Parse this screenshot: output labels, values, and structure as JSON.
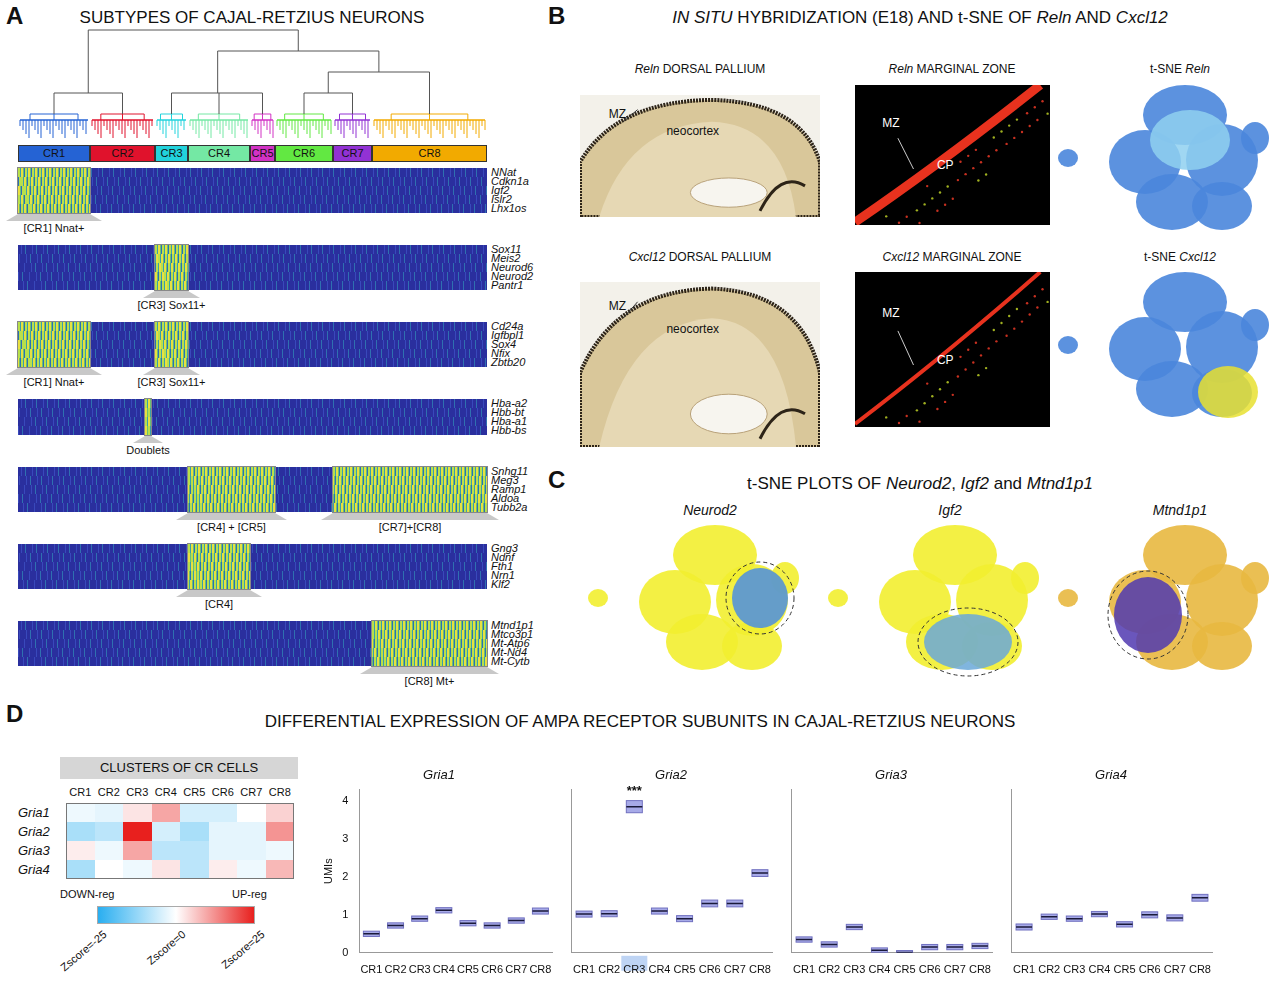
{
  "chart_data": [
    {
      "type": "point",
      "title": "Gria1",
      "y_label": "UMIs",
      "categories": [
        "CR1",
        "CR2",
        "CR3",
        "CR4",
        "CR5",
        "CR6",
        "CR7",
        "CR8"
      ],
      "values": [
        0.5,
        0.72,
        0.9,
        1.12,
        0.78,
        0.72,
        0.85,
        1.1
      ],
      "errors": [
        0.03,
        0.03,
        0.03,
        0.03,
        0.03,
        0.03,
        0.03,
        0.04
      ],
      "color": "#8a8ee0",
      "marker": "line",
      "ylim": [
        0,
        4.3
      ],
      "yticks": [
        0,
        1,
        2,
        3,
        4
      ]
    },
    {
      "type": "point",
      "title": "Gria2",
      "categories": [
        "CR1",
        "CR2",
        "CR3",
        "CR4",
        "CR5",
        "CR6",
        "CR7",
        "CR8"
      ],
      "values": [
        1.02,
        1.03,
        3.85,
        1.1,
        0.9,
        1.3,
        1.3,
        2.1
      ],
      "errors": [
        0.04,
        0.04,
        0.12,
        0.04,
        0.04,
        0.05,
        0.05,
        0.05
      ],
      "annotations": [
        {
          "text": "***",
          "category": "CR3"
        }
      ],
      "color": "#8a8ee0",
      "marker": "line",
      "ylim": [
        0,
        4.3
      ],
      "yticks": [
        0,
        1,
        2,
        3,
        4
      ],
      "tick_labels": "x"
    },
    {
      "type": "point",
      "title": "Gria3",
      "categories": [
        "CR1",
        "CR2",
        "CR3",
        "CR4",
        "CR5",
        "CR6",
        "CR7",
        "CR8"
      ],
      "values": [
        0.35,
        0.22,
        0.68,
        0.07,
        0.01,
        0.15,
        0.15,
        0.18
      ],
      "errors": [
        0.03,
        0.03,
        0.03,
        0.02,
        0.01,
        0.03,
        0.03,
        0.03
      ],
      "color": "#8a8ee0",
      "marker": "line",
      "ylim": [
        0,
        4.3
      ],
      "yticks": [
        0,
        1,
        2,
        3,
        4
      ],
      "tick_labels": "x"
    },
    {
      "type": "point",
      "title": "Gria4",
      "categories": [
        "CR1",
        "CR2",
        "CR3",
        "CR4",
        "CR5",
        "CR6",
        "CR7",
        "CR8"
      ],
      "values": [
        0.68,
        0.95,
        0.9,
        1.02,
        0.75,
        1.0,
        0.92,
        1.45
      ],
      "errors": [
        0.04,
        0.03,
        0.03,
        0.03,
        0.03,
        0.04,
        0.04,
        0.05
      ],
      "color": "#8a8ee0",
      "marker": "line",
      "ylim": [
        0,
        4.3
      ],
      "yticks": [
        0,
        1,
        2,
        3,
        4
      ],
      "tick_labels": "x"
    }
  ],
  "figure": {
    "A": {
      "letter": "A",
      "title": "SUBTYPES OF CAJAL-RETZIUS NEURONS",
      "clusters": [
        {
          "name": "CR1",
          "color": "#2563d4",
          "share": 72
        },
        {
          "name": "CR2",
          "color": "#e0122c",
          "share": 65
        },
        {
          "name": "CR3",
          "color": "#22d3dc",
          "share": 33
        },
        {
          "name": "CR4",
          "color": "#74e8a4",
          "share": 62
        },
        {
          "name": "CR5",
          "color": "#d232c4",
          "share": 25
        },
        {
          "name": "CR6",
          "color": "#62e842",
          "share": 58
        },
        {
          "name": "CR7",
          "color": "#9232d4",
          "share": 39
        },
        {
          "name": "CR8",
          "color": "#f2aa00",
          "share": 115
        }
      ],
      "heatmaps": [
        {
          "genes": [
            "NNat",
            "Cdkn1a",
            "Igf2",
            "Islr2",
            "Lhx1os"
          ],
          "annotations": [
            {
              "text": "[CR1] Nnat+",
              "clusters": [
                "CR1"
              ]
            }
          ]
        },
        {
          "genes": [
            "Sox11",
            "Meis2",
            "Neurod6",
            "Neurod2",
            "Pantr1"
          ],
          "annotations": [
            {
              "text": "[CR3] Sox11+",
              "clusters": [
                "CR3"
              ]
            }
          ]
        },
        {
          "genes": [
            "Cd24a",
            "Igfbpl1",
            "Sox4",
            "Nfix",
            "Zbtb20"
          ],
          "annotations": [
            {
              "text": "[CR1] Nnat+",
              "clusters": [
                "CR1"
              ]
            },
            {
              "text": "[CR3] Sox11+",
              "clusters": [
                "CR3"
              ]
            }
          ]
        },
        {
          "genes": [
            "Hba-a2",
            "Hbb-bt",
            "Hba-a1",
            "Hbb-bs"
          ],
          "annotations": [
            {
              "text": "Doublets",
              "clusters": [
                "CR2"
              ],
              "narrow": true
            }
          ]
        },
        {
          "genes": [
            "Snhg11",
            "Meg3",
            "Ramp1",
            "Aldoa",
            "Tubb2a"
          ],
          "annotations": [
            {
              "text": "[CR4] + [CR5]",
              "clusters": [
                "CR4",
                "CR5"
              ]
            },
            {
              "text": "[CR7]+[CR8]",
              "clusters": [
                "CR7",
                "CR8"
              ]
            }
          ]
        },
        {
          "genes": [
            "Gng3",
            "Ndnf",
            "Fth1",
            "Nrn1",
            "Klf2"
          ],
          "annotations": [
            {
              "text": "[CR4]",
              "clusters": [
                "CR4"
              ]
            }
          ]
        },
        {
          "genes": [
            "Mtnd1p1",
            "Mtco3p1",
            "Mt-Atp6",
            "Mt-Nd4",
            "Mt-Cytb"
          ],
          "annotations": [
            {
              "text": "[CR8] Mt+",
              "clusters": [
                "CR8"
              ]
            }
          ]
        }
      ]
    },
    "B": {
      "letter": "B",
      "title": [
        {
          "text": "IN SITU",
          "italic": true
        },
        {
          "text": " HYBRIDIZATION (E18) AND t-SNE OF "
        },
        {
          "text": "Reln",
          "italic": true
        },
        {
          "text": " AND "
        },
        {
          "text": "Cxcl12",
          "italic": true
        }
      ],
      "rows": [
        {
          "dorsal_title": [
            {
              "text": "Reln",
              "italic": true
            },
            {
              "text": " DORSAL PALLIUM"
            }
          ],
          "dorsal_labels": [
            "MZ",
            "neocortex"
          ],
          "mz_title": [
            {
              "text": "Reln",
              "italic": true
            },
            {
              "text": " MARGINAL ZONE"
            }
          ],
          "mz_labels": [
            "MZ",
            "CP"
          ],
          "tsne_title": [
            {
              "text": "t-SNE "
            },
            {
              "text": "Reln",
              "italic": true
            }
          ]
        },
        {
          "dorsal_title": [
            {
              "text": "Cxcl12",
              "italic": true
            },
            {
              "text": " DORSAL PALLIUM"
            }
          ],
          "dorsal_labels": [
            "MZ",
            "neocortex"
          ],
          "mz_title": [
            {
              "text": "Cxcl12",
              "italic": true
            },
            {
              "text": " MARGINAL ZONE"
            }
          ],
          "mz_labels": [
            "MZ",
            "CP"
          ],
          "tsne_title": [
            {
              "text": "t-SNE "
            },
            {
              "text": "Cxcl12",
              "italic": true
            }
          ]
        }
      ]
    },
    "C": {
      "letter": "C",
      "title": [
        {
          "text": "t-SNE PLOTS OF "
        },
        {
          "text": "Neurod2",
          "italic": true
        },
        {
          "text": ", "
        },
        {
          "text": "Igf2",
          "italic": true
        },
        {
          "text": " and "
        },
        {
          "text": "Mtnd1p1",
          "italic": true
        }
      ],
      "plots": [
        "Neurod2",
        "Igf2",
        "Mtnd1p1"
      ]
    },
    "D": {
      "letter": "D",
      "title": "DIFFERENTIAL EXPRESSION OF AMPA RECEPTOR SUBUNITS IN CAJAL-RETZIUS NEURONS",
      "heatmap": {
        "title": "CLUSTERS OF CR CELLS",
        "columns": [
          "CR1",
          "CR2",
          "CR3",
          "CR4",
          "CR5",
          "CR6",
          "CR7",
          "CR8"
        ],
        "rows": [
          "Gria1",
          "Gria2",
          "Gria3",
          "Gria4"
        ],
        "zscores": [
          [
            -2,
            -3,
            3,
            10,
            -5,
            -5,
            0,
            5
          ],
          [
            -10,
            -8,
            25,
            -5,
            -10,
            -3,
            -3,
            12
          ],
          [
            2,
            -2,
            10,
            -8,
            -8,
            -3,
            -3,
            -2
          ],
          [
            -10,
            0,
            -2,
            3,
            -8,
            2,
            -2,
            8
          ]
        ],
        "colorbar": {
          "range": [
            -25,
            25
          ],
          "ticks": [
            {
              "value": -25,
              "label": "Zscore=-25"
            },
            {
              "value": 0,
              "label": "Zscore=0"
            },
            {
              "value": 25,
              "label": "Zscore=25"
            }
          ],
          "low_label": "DOWN-reg",
          "high_label": "UP-reg"
        }
      }
    }
  }
}
